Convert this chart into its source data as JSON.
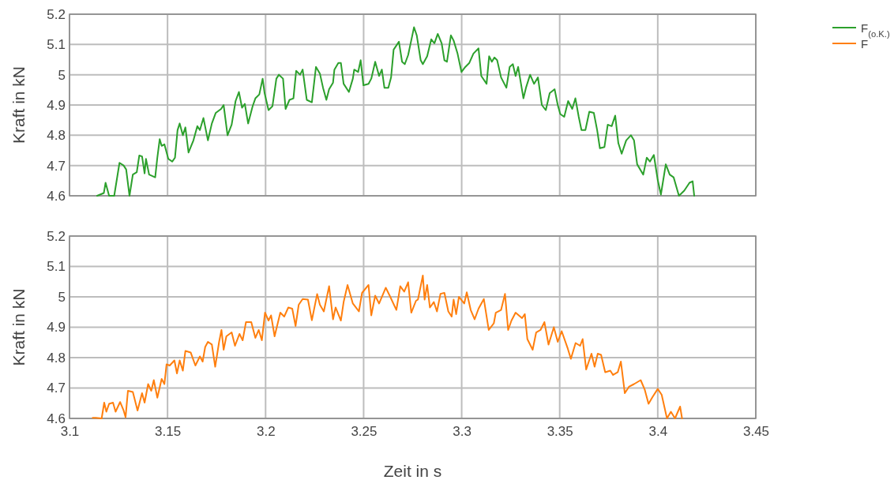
{
  "chart_data": [
    {
      "type": "line",
      "ylabel": "Kraft in kN",
      "xlim": [
        3.1,
        3.45
      ],
      "xticks": [
        3.1,
        3.15,
        3.2,
        3.25,
        3.3,
        3.35,
        3.4,
        3.45
      ],
      "ylim": [
        4.6,
        5.2
      ],
      "yticks": [
        4.6,
        4.7,
        4.8,
        4.9,
        5,
        5.1,
        5.2
      ],
      "grid": true,
      "legend": "top right",
      "tick_labels": "y",
      "series": [
        {
          "name": "F$_{(o.K.)}$",
          "color": "#2ca02c",
          "x": [
            3.1141,
            3.1175,
            3.1184,
            3.1202,
            3.1228,
            3.1255,
            3.1276,
            3.1289,
            3.1306,
            3.1323,
            3.1343,
            3.1356,
            3.137,
            3.1383,
            3.139,
            3.1406,
            3.1437,
            3.1448,
            3.146,
            3.147,
            3.1484,
            3.1504,
            3.1524,
            3.1538,
            3.1551,
            3.1562,
            3.1578,
            3.1591,
            3.1607,
            3.1632,
            3.1652,
            3.1665,
            3.1683,
            3.1706,
            3.1726,
            3.1746,
            3.1773,
            3.1786,
            3.1806,
            3.1827,
            3.1847,
            3.1864,
            3.188,
            3.1894,
            3.1911,
            3.1934,
            3.1948,
            3.1968,
            3.1985,
            3.1995,
            3.2015,
            3.2035,
            3.2055,
            3.2068,
            3.2089,
            3.2102,
            3.2122,
            3.2142,
            3.2156,
            3.2176,
            3.2189,
            3.221,
            3.2236,
            3.2257,
            3.2277,
            3.2293,
            3.231,
            3.2324,
            3.2344,
            3.2351,
            3.2371,
            3.2384,
            3.2398,
            3.2425,
            3.2445,
            3.2452,
            3.2472,
            3.2485,
            3.2499,
            3.2525,
            3.2539,
            3.2559,
            3.2579,
            3.2593,
            3.2606,
            3.2626,
            3.264,
            3.2653,
            3.268,
            3.2696,
            3.271,
            3.2727,
            3.2747,
            3.2757,
            3.2771,
            3.2791,
            3.2802,
            3.2824,
            3.2845,
            3.2861,
            3.2878,
            3.2898,
            3.2912,
            3.2925,
            3.2945,
            3.2959,
            3.2979,
            3.2999,
            3.3019,
            3.3039,
            3.306,
            3.3086,
            3.31,
            3.3127,
            3.314,
            3.3154,
            3.3167,
            3.3181,
            3.3201,
            3.3228,
            3.3245,
            3.3261,
            3.3275,
            3.3288,
            3.3315,
            3.3328,
            3.3349,
            3.3369,
            3.3389,
            3.3409,
            3.3429,
            3.3449,
            3.3474,
            3.349,
            3.3503,
            3.3523,
            3.3543,
            3.3564,
            3.358,
            3.3597,
            3.3611,
            3.3631,
            3.3651,
            3.3674,
            3.3691,
            3.3705,
            3.3728,
            3.3745,
            3.3765,
            3.3783,
            3.3799,
            3.3816,
            3.3839,
            3.3863,
            3.3879,
            3.3895,
            3.3926,
            3.3944,
            3.396,
            3.398,
            3.4,
            3.4016,
            3.4041,
            3.4061,
            3.4081,
            3.4108,
            3.4135,
            3.4162,
            3.4178,
            3.4186
          ],
          "values": [
            4.6,
            4.609,
            4.643,
            4.6,
            4.6,
            4.709,
            4.7,
            4.687,
            4.6,
            4.67,
            4.678,
            4.733,
            4.73,
            4.674,
            4.722,
            4.67,
            4.661,
            4.726,
            4.787,
            4.765,
            4.77,
            4.722,
            4.713,
            4.726,
            4.817,
            4.839,
            4.8,
            4.826,
            4.743,
            4.783,
            4.83,
            4.817,
            4.857,
            4.783,
            4.839,
            4.874,
            4.887,
            4.9,
            4.8,
            4.835,
            4.913,
            4.943,
            4.891,
            4.904,
            4.839,
            4.896,
            4.922,
            4.935,
            4.987,
            4.939,
            4.883,
            4.896,
            4.987,
            5,
            4.987,
            4.887,
            4.917,
            4.922,
            5.013,
            5,
            5.017,
            4.917,
            4.909,
            5.026,
            5.004,
            4.957,
            4.917,
            4.952,
            4.974,
            5.017,
            5.039,
            5.039,
            4.97,
            4.943,
            4.987,
            5.017,
            5.009,
            5.048,
            4.965,
            4.97,
            4.987,
            5.043,
            4.996,
            5.017,
            4.957,
            4.957,
            4.991,
            5.083,
            5.109,
            5.043,
            5.035,
            5.065,
            5.126,
            5.157,
            5.13,
            5.048,
            5.035,
            5.061,
            5.117,
            5.104,
            5.135,
            5.104,
            5.048,
            5.043,
            5.13,
            5.113,
            5.07,
            5.009,
            5.026,
            5.039,
            5.07,
            5.087,
            4.996,
            4.97,
            5.061,
            5.043,
            5.057,
            5.048,
            4.991,
            4.957,
            5.026,
            5.035,
            4.996,
            5.026,
            4.922,
            4.957,
            5,
            4.97,
            4.991,
            4.9,
            4.883,
            4.939,
            4.952,
            4.9,
            4.87,
            4.861,
            4.913,
            4.887,
            4.922,
            4.861,
            4.817,
            4.817,
            4.878,
            4.874,
            4.817,
            4.757,
            4.761,
            4.835,
            4.83,
            4.865,
            4.774,
            4.739,
            4.783,
            4.8,
            4.783,
            4.704,
            4.67,
            4.726,
            4.713,
            4.735,
            4.652,
            4.604,
            4.704,
            4.67,
            4.661,
            4.6,
            4.617,
            4.643,
            4.648,
            4.6
          ]
        }
      ]
    },
    {
      "type": "line",
      "ylabel": "Kraft in kN",
      "xlabel": "Zeit in s",
      "xlim": [
        3.1,
        3.45
      ],
      "xticks": [
        3.1,
        3.15,
        3.2,
        3.25,
        3.3,
        3.35,
        3.4,
        3.45
      ],
      "ylim": [
        4.6,
        5.2
      ],
      "yticks": [
        4.6,
        4.7,
        4.8,
        4.9,
        5,
        5.1,
        5.2
      ],
      "grid": true,
      "legend": "top right",
      "series": [
        {
          "name": "F",
          "color": "#ff7f0e",
          "x": [
            3.1118,
            3.1134,
            3.1164,
            3.1177,
            3.1188,
            3.1202,
            3.1222,
            3.1235,
            3.1258,
            3.1276,
            3.1286,
            3.1298,
            3.1323,
            3.1347,
            3.137,
            3.1383,
            3.1401,
            3.1417,
            3.143,
            3.1448,
            3.147,
            3.1484,
            3.1495,
            3.1511,
            3.1535,
            3.1548,
            3.1562,
            3.1578,
            3.1591,
            3.1618,
            3.1642,
            3.1665,
            3.1679,
            3.1692,
            3.1706,
            3.1726,
            3.1743,
            3.1763,
            3.1775,
            3.1786,
            3.18,
            3.1827,
            3.1844,
            3.1867,
            3.1883,
            3.19,
            3.1927,
            3.1948,
            3.1965,
            3.1981,
            3.1997,
            3.2015,
            3.2028,
            3.2046,
            3.2075,
            3.2095,
            3.2116,
            3.2136,
            3.2153,
            3.2169,
            3.2189,
            3.2216,
            3.2236,
            3.2263,
            3.2277,
            3.2297,
            3.2324,
            3.2344,
            3.2357,
            3.2384,
            3.2398,
            3.2418,
            3.2445,
            3.2476,
            3.2492,
            3.2525,
            3.2539,
            3.2559,
            3.2579,
            3.2613,
            3.2633,
            3.2667,
            3.2687,
            3.2707,
            3.2727,
            3.2743,
            3.2767,
            3.2777,
            3.2802,
            3.2811,
            3.2824,
            3.2838,
            3.2858,
            3.2874,
            3.2892,
            3.2912,
            3.2932,
            3.2949,
            3.2959,
            3.2972,
            3.2986,
            3.3013,
            3.3026,
            3.3046,
            3.3066,
            3.3086,
            3.3113,
            3.3138,
            3.3164,
            3.3174,
            3.3201,
            3.3221,
            3.3237,
            3.3254,
            3.3275,
            3.3308,
            3.3322,
            3.3335,
            3.3362,
            3.338,
            3.3402,
            3.3422,
            3.3443,
            3.347,
            3.349,
            3.351,
            3.3541,
            3.3557,
            3.3581,
            3.3604,
            3.3617,
            3.3635,
            3.3662,
            3.3678,
            3.3694,
            3.3711,
            3.3732,
            3.3758,
            3.3772,
            3.3796,
            3.3812,
            3.3832,
            3.3853,
            3.3879,
            3.3913,
            3.3933,
            3.3953,
            3.3973,
            3.4,
            3.402,
            3.4047,
            3.4067,
            3.4088,
            3.4114,
            3.4124
          ],
          "values": [
            4.602,
            4.602,
            4.6,
            4.652,
            4.622,
            4.648,
            4.652,
            4.622,
            4.654,
            4.626,
            4.604,
            4.691,
            4.687,
            4.626,
            4.683,
            4.652,
            4.713,
            4.691,
            4.726,
            4.668,
            4.73,
            4.713,
            4.778,
            4.774,
            4.791,
            4.748,
            4.791,
            4.757,
            4.822,
            4.817,
            4.774,
            4.804,
            4.787,
            4.835,
            4.852,
            4.843,
            4.77,
            4.852,
            4.891,
            4.826,
            4.87,
            4.883,
            4.839,
            4.878,
            4.857,
            4.917,
            4.917,
            4.865,
            4.891,
            4.857,
            4.948,
            4.922,
            4.939,
            4.87,
            4.948,
            4.935,
            4.965,
            4.961,
            4.904,
            4.974,
            4.993,
            4.991,
            4.923,
            5.009,
            4.974,
            4.952,
            5.035,
            4.926,
            4.965,
            4.922,
            4.983,
            5.039,
            4.978,
            4.952,
            5.013,
            5.039,
            4.939,
            5.004,
            4.978,
            5.03,
            5.004,
            4.957,
            5.035,
            5.017,
            5.048,
            4.948,
            4.987,
            4.991,
            5.07,
            4.991,
            5.039,
            4.965,
            4.983,
            4.952,
            5.01,
            5.013,
            4.952,
            4.935,
            4.991,
            4.943,
            5,
            4.978,
            5.015,
            4.957,
            4.926,
            4.961,
            4.993,
            4.891,
            4.913,
            4.948,
            4.957,
            5.01,
            4.891,
            4.922,
            4.948,
            4.93,
            4.943,
            4.861,
            4.826,
            4.883,
            4.891,
            4.917,
            4.843,
            4.9,
            4.852,
            4.887,
            4.83,
            4.796,
            4.848,
            4.839,
            4.861,
            4.761,
            4.813,
            4.77,
            4.813,
            4.809,
            4.752,
            4.757,
            4.743,
            4.752,
            4.787,
            4.683,
            4.704,
            4.713,
            4.726,
            4.696,
            4.648,
            4.67,
            4.697,
            4.678,
            4.6,
            4.622,
            4.6,
            4.639,
            4.6
          ]
        }
      ]
    }
  ]
}
